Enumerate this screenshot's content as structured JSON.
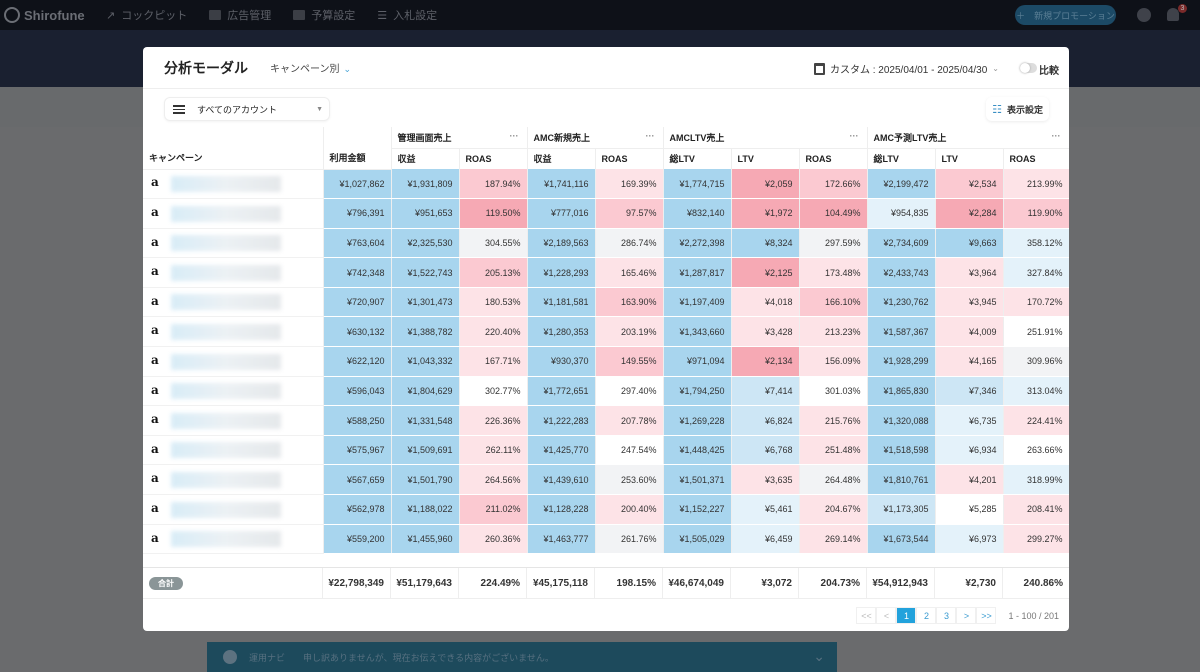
{
  "nav": {
    "brand": "Shirofune",
    "items": [
      {
        "label": "コックピット"
      },
      {
        "label": "広告管理"
      },
      {
        "label": "予算設定"
      },
      {
        "label": "入札設定"
      }
    ],
    "new_button": "＋　新規プロモーション",
    "notification_count": "3"
  },
  "modal": {
    "title": "分析モーダル",
    "mode": "キャンペーン別",
    "date_range": "カスタム : 2025/04/01 - 2025/04/30",
    "compare_label": "比較",
    "account_select": "すべてのアカウント",
    "display_settings": "表示設定"
  },
  "table": {
    "campaign_header": "キャンペーン",
    "spend_header": "利用金額",
    "groups": [
      {
        "label": "管理画面売上",
        "cols": [
          "収益",
          "ROAS"
        ]
      },
      {
        "label": "AMC新規売上",
        "cols": [
          "収益",
          "ROAS"
        ]
      },
      {
        "label": "AMCLTV売上",
        "cols": [
          "総LTV",
          "LTV",
          "ROAS"
        ]
      },
      {
        "label": "AMC予測LTV売上",
        "cols": [
          "総LTV",
          "LTV",
          "ROAS"
        ]
      }
    ],
    "rows": [
      {
        "cells": [
          "¥1,027,862",
          "¥1,931,809",
          "187.94%",
          "¥1,741,116",
          "169.39%",
          "¥1,774,715",
          "¥2,059",
          "172.66%",
          "¥2,199,472",
          "¥2,534",
          "213.99%"
        ],
        "tones": "B B P B p B R P B P p"
      },
      {
        "cells": [
          "¥796,391",
          "¥951,653",
          "119.50%",
          "¥777,016",
          "97.57%",
          "¥832,140",
          "¥1,972",
          "104.49%",
          "¥954,835",
          "¥2,284",
          "119.90%"
        ],
        "tones": "B B R B P B R R x R P"
      },
      {
        "cells": [
          "¥763,604",
          "¥2,325,530",
          "304.55%",
          "¥2,189,563",
          "286.74%",
          "¥2,272,398",
          "¥8,324",
          "297.59%",
          "¥2,734,609",
          "¥9,663",
          "358.12%"
        ],
        "tones": "B B gg B gg B B gg B B x"
      },
      {
        "cells": [
          "¥742,348",
          "¥1,522,743",
          "205.13%",
          "¥1,228,293",
          "165.46%",
          "¥1,287,817",
          "¥2,125",
          "173.48%",
          "¥2,433,743",
          "¥3,964",
          "327.84%"
        ],
        "tones": "B B P B p B R p B p x"
      },
      {
        "cells": [
          "¥720,907",
          "¥1,301,473",
          "180.53%",
          "¥1,181,581",
          "163.90%",
          "¥1,197,409",
          "¥4,018",
          "166.10%",
          "¥1,230,762",
          "¥3,945",
          "170.72%"
        ],
        "tones": "B B p B P B p P B p p"
      },
      {
        "cells": [
          "¥630,132",
          "¥1,388,782",
          "220.40%",
          "¥1,280,353",
          "203.19%",
          "¥1,343,660",
          "¥3,428",
          "213.23%",
          "¥1,587,367",
          "¥4,009",
          "251.91%"
        ],
        "tones": "B B p B p B p p B p w"
      },
      {
        "cells": [
          "¥622,120",
          "¥1,043,332",
          "167.71%",
          "¥930,370",
          "149.55%",
          "¥971,094",
          "¥2,134",
          "156.09%",
          "¥1,928,299",
          "¥4,165",
          "309.96%"
        ],
        "tones": "B B p B P B R p B p gg"
      },
      {
        "cells": [
          "¥596,043",
          "¥1,804,629",
          "302.77%",
          "¥1,772,651",
          "297.40%",
          "¥1,794,250",
          "¥7,414",
          "301.03%",
          "¥1,865,830",
          "¥7,346",
          "313.04%"
        ],
        "tones": "B B w B w B b w B b x"
      },
      {
        "cells": [
          "¥588,250",
          "¥1,331,548",
          "226.36%",
          "¥1,222,283",
          "207.78%",
          "¥1,269,228",
          "¥6,824",
          "215.76%",
          "¥1,320,088",
          "¥6,735",
          "224.41%"
        ],
        "tones": "B B p B p B b p B x p"
      },
      {
        "cells": [
          "¥575,967",
          "¥1,509,691",
          "262.11%",
          "¥1,425,770",
          "247.54%",
          "¥1,448,425",
          "¥6,768",
          "251.48%",
          "¥1,518,598",
          "¥6,934",
          "263.66%"
        ],
        "tones": "B B p B w B b p B x w"
      },
      {
        "cells": [
          "¥567,659",
          "¥1,501,790",
          "264.56%",
          "¥1,439,610",
          "253.60%",
          "¥1,501,371",
          "¥3,635",
          "264.48%",
          "¥1,810,761",
          "¥4,201",
          "318.99%"
        ],
        "tones": "B B p B gg B p gg B p x"
      },
      {
        "cells": [
          "¥562,978",
          "¥1,188,022",
          "211.02%",
          "¥1,128,228",
          "200.40%",
          "¥1,152,227",
          "¥5,461",
          "204.67%",
          "¥1,173,305",
          "¥5,285",
          "208.41%"
        ],
        "tones": "B B P B p B x p b w p"
      },
      {
        "cells": [
          "¥559,200",
          "¥1,455,960",
          "260.36%",
          "¥1,463,777",
          "261.76%",
          "¥1,505,029",
          "¥6,459",
          "269.14%",
          "¥1,673,544",
          "¥6,973",
          "299.27%"
        ],
        "tones": "B B p B gg B x p B x p"
      }
    ],
    "total": {
      "label": "合計",
      "cells": [
        "¥22,798,349",
        "¥51,179,643",
        "224.49%",
        "¥45,175,118",
        "198.15%",
        "¥46,674,049",
        "¥3,072",
        "204.73%",
        "¥54,912,943",
        "¥2,730",
        "240.86%"
      ]
    }
  },
  "pagination": {
    "first": "<<",
    "prev": "<",
    "pages": [
      "1",
      "2",
      "3"
    ],
    "current": "1",
    "next": ">",
    "last": ">>",
    "range": "1 - 100 / 201"
  },
  "navi": {
    "label": "運用ナビ",
    "message": "申し訳ありませんが、現在お伝えできる内容がございません。"
  }
}
